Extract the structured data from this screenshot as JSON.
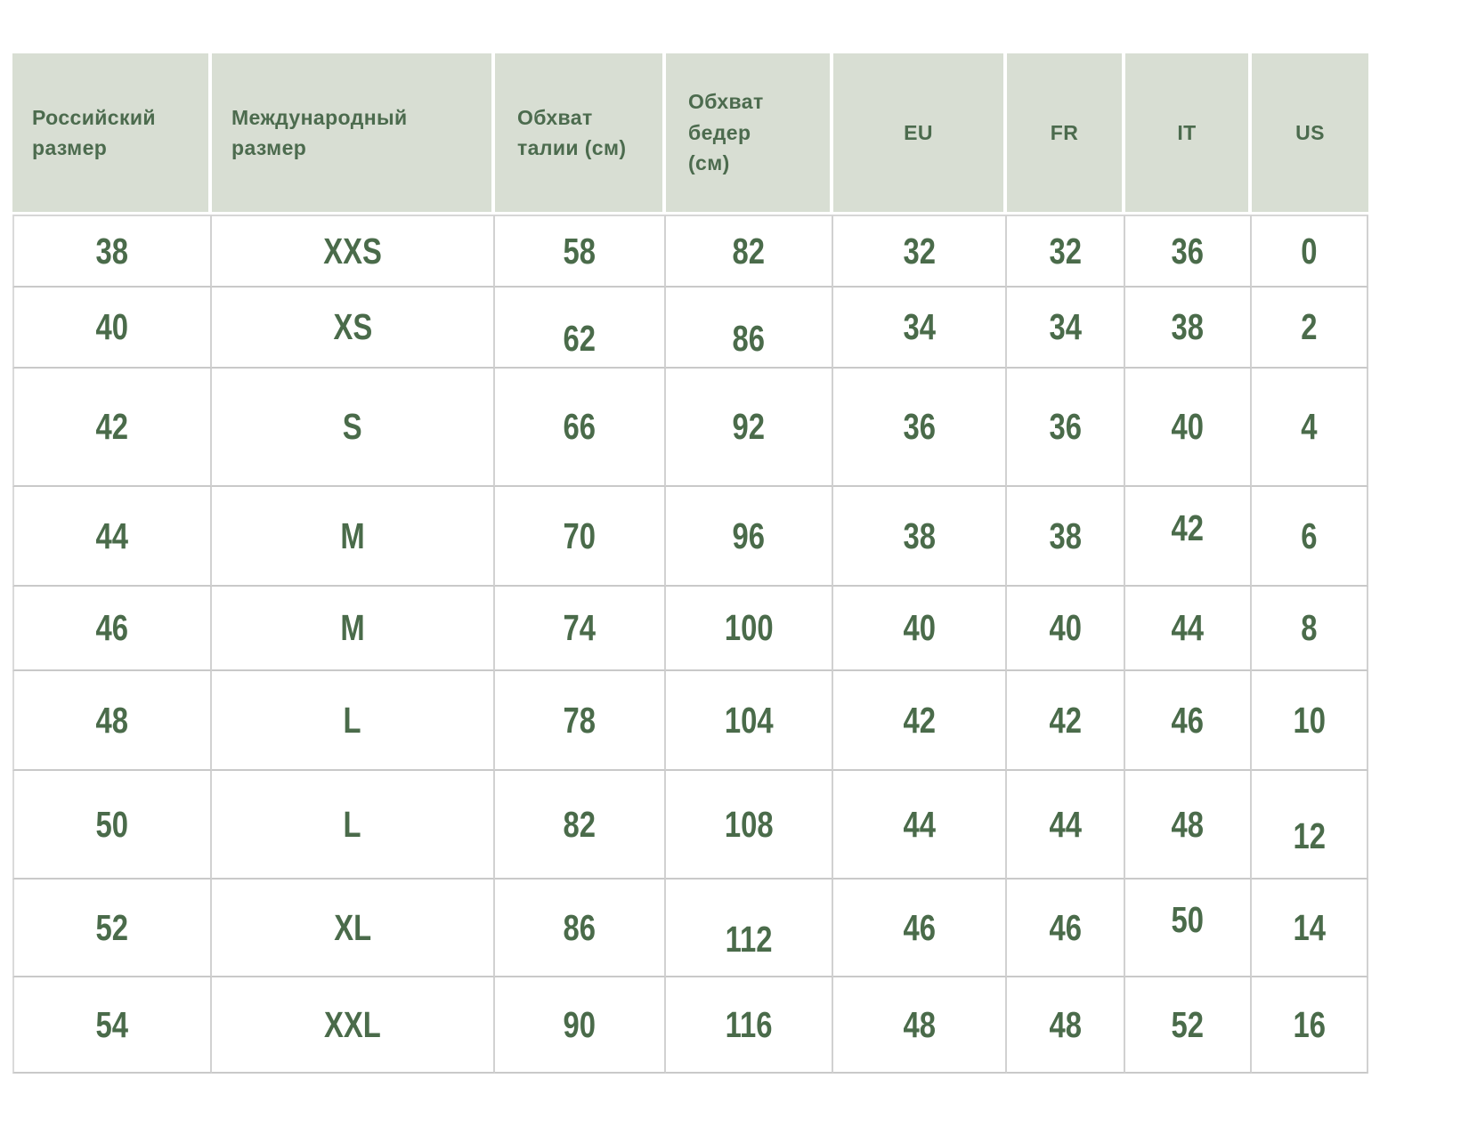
{
  "colors": {
    "header_background": "#d8ded3",
    "header_text": "#4c6b4e",
    "cell_text": "#4a6b4a",
    "grid_line": "#cccccc",
    "page_background": "#ffffff"
  },
  "table": {
    "columns": [
      {
        "label": "Российский размер"
      },
      {
        "label": "Международный размер"
      },
      {
        "label": "Обхват талии (см)"
      },
      {
        "label": "Обхват бедер (см)"
      },
      {
        "label": "EU"
      },
      {
        "label": "FR"
      },
      {
        "label": "IT"
      },
      {
        "label": "US"
      }
    ],
    "rows": [
      [
        "38",
        "XXS",
        "58",
        "82",
        "32",
        "32",
        "36",
        "0"
      ],
      [
        "40",
        "XS",
        "62",
        "86",
        "34",
        "34",
        "38",
        "2"
      ],
      [
        "42",
        "S",
        "66",
        "92",
        "36",
        "36",
        "40",
        "4"
      ],
      [
        "44",
        "M",
        "70",
        "96",
        "38",
        "38",
        "42",
        "6"
      ],
      [
        "46",
        "M",
        "74",
        "100",
        "40",
        "40",
        "44",
        "8"
      ],
      [
        "48",
        "L",
        "78",
        "104",
        "42",
        "42",
        "46",
        "10"
      ],
      [
        "50",
        "L",
        "82",
        "108",
        "44",
        "44",
        "48",
        "12"
      ],
      [
        "52",
        "XL",
        "86",
        "112",
        "46",
        "46",
        "50",
        "14"
      ],
      [
        "54",
        "XXL",
        "90",
        "116",
        "48",
        "48",
        "52",
        "16"
      ]
    ]
  },
  "chart_data": {
    "type": "table",
    "title": "",
    "columns": [
      "Российский размер",
      "Международный размер",
      "Обхват талии (см)",
      "Обхват бедер (см)",
      "EU",
      "FR",
      "IT",
      "US"
    ],
    "rows": [
      [
        "38",
        "XXS",
        58,
        82,
        32,
        32,
        36,
        0
      ],
      [
        "40",
        "XS",
        62,
        86,
        34,
        34,
        38,
        2
      ],
      [
        "42",
        "S",
        66,
        92,
        36,
        36,
        40,
        4
      ],
      [
        "44",
        "M",
        70,
        96,
        38,
        38,
        42,
        6
      ],
      [
        "46",
        "M",
        74,
        100,
        40,
        40,
        44,
        8
      ],
      [
        "48",
        "L",
        78,
        104,
        42,
        42,
        46,
        10
      ],
      [
        "50",
        "L",
        82,
        108,
        44,
        44,
        48,
        12
      ],
      [
        "52",
        "XL",
        86,
        112,
        46,
        46,
        50,
        14
      ],
      [
        "54",
        "XXL",
        90,
        116,
        48,
        48,
        52,
        16
      ]
    ]
  }
}
